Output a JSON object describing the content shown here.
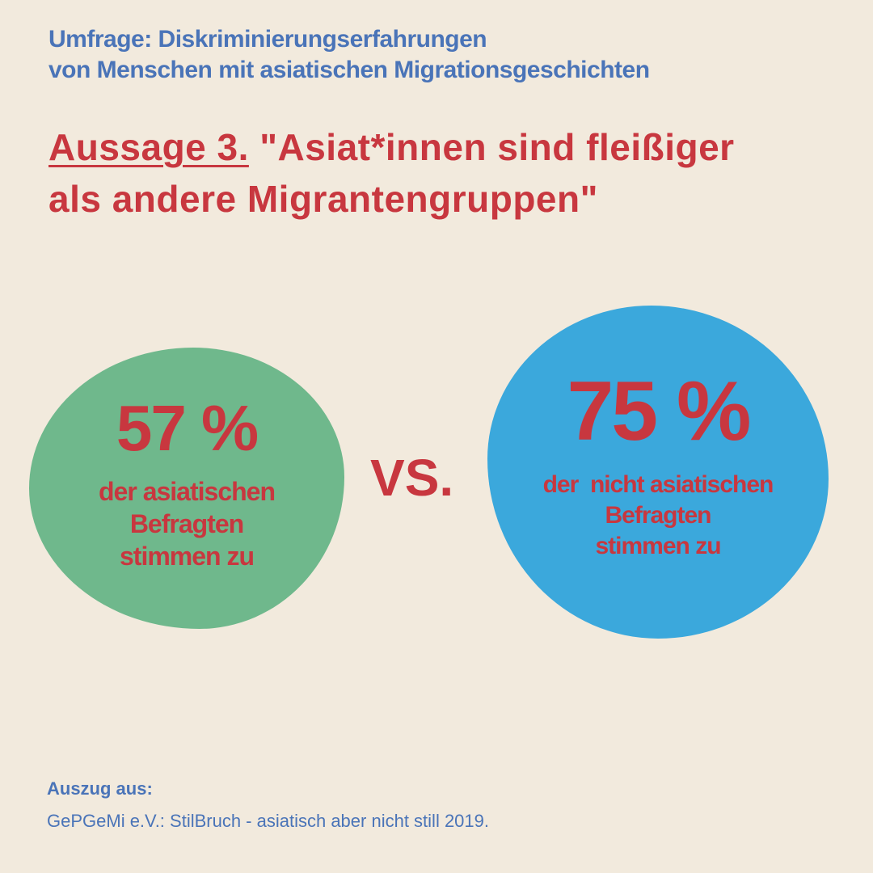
{
  "header": {
    "survey_line1": "Umfrage: Diskriminierungserfahrungen",
    "survey_line2": "von Menschen mit asiatischen Migrationsgeschichten"
  },
  "statement": {
    "label": "Aussage 3.",
    "text_line1": "\"Asiat*innen sind fleißiger",
    "text_line2": "als andere Migrantengruppen\""
  },
  "comparison": {
    "left": {
      "percent": "57 %",
      "desc_line1": "der asiatischen",
      "desc_line2": "Befragten",
      "desc_line3": "stimmen zu"
    },
    "vs_label": "VS.",
    "right": {
      "percent": "75 %",
      "desc_line1": "der  nicht asiatischen",
      "desc_line2": "Befragten",
      "desc_line3": "stimmen zu"
    }
  },
  "source": {
    "heading": "Auszug aus:",
    "text": "GePGeMi e.V.: StilBruch - asiatisch aber nicht still 2019."
  },
  "colors": {
    "background": "#f2eadd",
    "header_blue": "#4a74b8",
    "accent_red": "#c8373f",
    "green_blob": "#6fb88c",
    "blue_blob": "#3ba8dc"
  }
}
